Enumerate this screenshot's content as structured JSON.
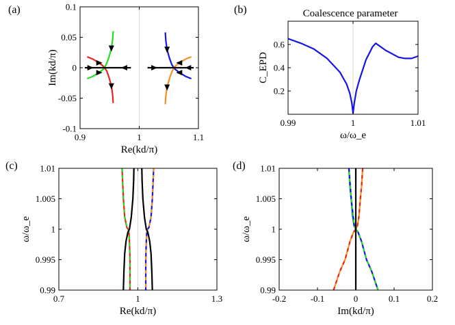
{
  "colors": {
    "red": "#e8251f",
    "green": "#22dd22",
    "blue": "#1515e6",
    "orange": "#f39222",
    "black": "#000000",
    "grid": "#d9d9d9"
  },
  "chart_data": [
    {
      "panel": "(a)",
      "type": "line",
      "title": "",
      "xlabel": "Re(kd/π)",
      "ylabel": "Im(kd/π)",
      "xlim": [
        0.9,
        1.1
      ],
      "ylim": [
        -0.1,
        0.1
      ],
      "xticks": [
        "0.9",
        "1",
        "1.1"
      ],
      "yticks": [
        "0.1",
        "0.05",
        "0",
        "-0.05",
        "-0.1"
      ],
      "grid": "x = 1 only",
      "series": [
        {
          "color": "red",
          "points": [
            [
              0.912,
              0.018
            ],
            [
              0.922,
              0.014
            ],
            [
              0.932,
              0.008
            ],
            [
              0.94,
              0.002
            ],
            [
              0.945,
              -0.005
            ],
            [
              0.949,
              -0.016
            ],
            [
              0.953,
              -0.03
            ],
            [
              0.955,
              -0.044
            ],
            [
              0.956,
              -0.058
            ]
          ]
        },
        {
          "color": "green",
          "points": [
            [
              0.956,
              0.06
            ],
            [
              0.955,
              0.046
            ],
            [
              0.953,
              0.032
            ],
            [
              0.949,
              0.018
            ],
            [
              0.945,
              0.007
            ],
            [
              0.94,
              -0.002
            ],
            [
              0.932,
              -0.008
            ],
            [
              0.922,
              -0.014
            ],
            [
              0.912,
              -0.018
            ]
          ]
        },
        {
          "color": "black",
          "points": [
            [
              0.908,
              0
            ],
            [
              0.986,
              0
            ]
          ]
        },
        {
          "color": "blue",
          "points": [
            [
              1.044,
              0.058
            ],
            [
              1.045,
              0.044
            ],
            [
              1.047,
              0.03
            ],
            [
              1.051,
              0.016
            ],
            [
              1.055,
              0.005
            ],
            [
              1.06,
              -0.002
            ],
            [
              1.068,
              -0.008
            ],
            [
              1.078,
              -0.014
            ],
            [
              1.088,
              -0.018
            ]
          ]
        },
        {
          "color": "orange",
          "points": [
            [
              1.088,
              0.018
            ],
            [
              1.078,
              0.014
            ],
            [
              1.068,
              0.008
            ],
            [
              1.06,
              0.002
            ],
            [
              1.055,
              -0.007
            ],
            [
              1.051,
              -0.018
            ],
            [
              1.047,
              -0.032
            ],
            [
              1.045,
              -0.046
            ],
            [
              1.044,
              -0.06
            ]
          ]
        },
        {
          "color": "black",
          "points": [
            [
              1.014,
              0
            ],
            [
              1.092,
              0
            ]
          ]
        }
      ],
      "arrows": [
        {
          "at": [
            0.917,
            0
          ],
          "dir": "right"
        },
        {
          "at": [
            0.975,
            0
          ],
          "dir": "left"
        },
        {
          "at": [
            0.932,
            0.008
          ],
          "dir": "right"
        },
        {
          "at": [
            0.953,
            0.032
          ],
          "dir": "down"
        },
        {
          "at": [
            0.953,
            -0.03
          ],
          "dir": "down"
        },
        {
          "at": [
            0.932,
            -0.008
          ],
          "dir": "right"
        },
        {
          "at": [
            1.025,
            0
          ],
          "dir": "right"
        },
        {
          "at": [
            1.083,
            0
          ],
          "dir": "left"
        },
        {
          "at": [
            1.047,
            0.03
          ],
          "dir": "down"
        },
        {
          "at": [
            1.068,
            0.008
          ],
          "dir": "left"
        },
        {
          "at": [
            1.068,
            -0.008
          ],
          "dir": "left"
        },
        {
          "at": [
            1.047,
            -0.032
          ],
          "dir": "down"
        }
      ]
    },
    {
      "panel": "(b)",
      "type": "line",
      "title": "Coalescence parameter",
      "xlabel": "ω/ω_e",
      "ylabel": "C_EPD",
      "xlim": [
        0.99,
        1.01
      ],
      "ylim": [
        0,
        0.8
      ],
      "xticks": [
        "0.99",
        "1",
        "1.01"
      ],
      "yticks": [
        "0.6",
        "0.4",
        "0.2"
      ],
      "grid": "x = 1 only",
      "series": [
        {
          "color": "blue",
          "points": [
            [
              0.99,
              0.65
            ],
            [
              0.992,
              0.61
            ],
            [
              0.994,
              0.56
            ],
            [
              0.996,
              0.48
            ],
            [
              0.998,
              0.36
            ],
            [
              0.999,
              0.26
            ],
            [
              0.9995,
              0.18
            ],
            [
              0.9998,
              0.1
            ],
            [
              1.0,
              0.01
            ],
            [
              1.0002,
              0.1
            ],
            [
              1.0005,
              0.2
            ],
            [
              1.001,
              0.3
            ],
            [
              1.002,
              0.47
            ],
            [
              1.003,
              0.58
            ],
            [
              1.0035,
              0.61
            ],
            [
              1.005,
              0.55
            ],
            [
              1.007,
              0.49
            ],
            [
              1.008,
              0.48
            ],
            [
              1.009,
              0.48
            ],
            [
              1.01,
              0.5
            ]
          ]
        }
      ]
    },
    {
      "panel": "(c)",
      "type": "line",
      "title": "",
      "xlabel": "Re(kd/π)",
      "ylabel": "ω/ω_e",
      "xlim": [
        0.7,
        1.3
      ],
      "ylim": [
        0.99,
        1.01
      ],
      "xticks": [
        "0.7",
        "1",
        "1.3"
      ],
      "yticks": [
        "1.01",
        "1.005",
        "1",
        "0.995",
        "0.99"
      ],
      "grid": "x = 1 only",
      "series": [
        {
          "color": "red",
          "dashed_with": "green",
          "points": [
            [
              0.94,
              1.01
            ],
            [
              0.945,
              1.005
            ],
            [
              0.95,
              1.002
            ],
            [
              0.958,
              1.0003
            ],
            [
              0.963,
              1.0
            ],
            [
              0.966,
              0.9995
            ],
            [
              0.968,
              0.998
            ],
            [
              0.97,
              0.995
            ],
            [
              0.97,
              0.99
            ]
          ]
        },
        {
          "color": "blue",
          "dashed_with": "orange",
          "points": [
            [
              1.06,
              1.01
            ],
            [
              1.055,
              1.005
            ],
            [
              1.05,
              1.002
            ],
            [
              1.042,
              1.0003
            ],
            [
              1.037,
              1.0
            ],
            [
              1.034,
              0.9995
            ],
            [
              1.032,
              0.998
            ],
            [
              1.03,
              0.995
            ],
            [
              1.03,
              0.99
            ]
          ]
        },
        {
          "color": "black",
          "points": [
            [
              0.945,
              0.99
            ],
            [
              0.947,
              0.993
            ],
            [
              0.95,
              0.996
            ],
            [
              0.955,
              0.998
            ],
            [
              0.962,
              0.9995
            ],
            [
              0.968,
              1.0
            ],
            [
              0.975,
              1.002
            ],
            [
              0.981,
              1.005
            ],
            [
              0.984,
              1.008
            ],
            [
              0.985,
              1.01
            ]
          ]
        },
        {
          "color": "black",
          "points": [
            [
              1.055,
              0.99
            ],
            [
              1.053,
              0.993
            ],
            [
              1.05,
              0.996
            ],
            [
              1.045,
              0.998
            ],
            [
              1.038,
              0.9995
            ],
            [
              1.032,
              1.0
            ],
            [
              1.025,
              1.002
            ],
            [
              1.019,
              1.005
            ],
            [
              1.016,
              1.008
            ],
            [
              1.015,
              1.01
            ]
          ]
        }
      ]
    },
    {
      "panel": "(d)",
      "type": "line",
      "title": "",
      "xlabel": "Im(kd/π)",
      "ylabel": "ω/ω_e",
      "xlim": [
        -0.2,
        0.2
      ],
      "ylim": [
        0.99,
        1.01
      ],
      "xticks": [
        "-0.2",
        "-0.1",
        "0",
        "0.1",
        "0.2"
      ],
      "yticks": [
        "1.01",
        "1.005",
        "1",
        "0.995",
        "0.99"
      ],
      "grid": "x = 0 only",
      "series": [
        {
          "color": "blue",
          "dashed_with": "green",
          "points": [
            [
              -0.018,
              1.01
            ],
            [
              -0.015,
              1.007
            ],
            [
              -0.012,
              1.005
            ],
            [
              -0.008,
              1.002
            ],
            [
              -0.004,
              1.0005
            ],
            [
              0.0,
              1.0
            ],
            [
              0.006,
              0.9995
            ],
            [
              0.015,
              0.998
            ],
            [
              0.028,
              0.995
            ],
            [
              0.042,
              0.993
            ],
            [
              0.058,
              0.99
            ]
          ]
        },
        {
          "color": "orange",
          "dashed_with": "red",
          "points": [
            [
              0.018,
              1.01
            ],
            [
              0.015,
              1.007
            ],
            [
              0.012,
              1.005
            ],
            [
              0.008,
              1.002
            ],
            [
              0.004,
              1.0005
            ],
            [
              0.0,
              1.0
            ],
            [
              -0.006,
              0.9995
            ],
            [
              -0.015,
              0.998
            ],
            [
              -0.028,
              0.995
            ],
            [
              -0.042,
              0.993
            ],
            [
              -0.058,
              0.99
            ]
          ]
        },
        {
          "color": "green",
          "dashed_with": "blue",
          "points": [
            [
              -0.018,
              1.01
            ],
            [
              -0.012,
              1.005
            ],
            [
              -0.004,
              1.0005
            ],
            [
              0.0,
              1.0
            ]
          ]
        },
        {
          "color": "black",
          "points": [
            [
              0.0,
              0.99
            ],
            [
              0.0,
              1.01
            ]
          ]
        }
      ]
    }
  ]
}
